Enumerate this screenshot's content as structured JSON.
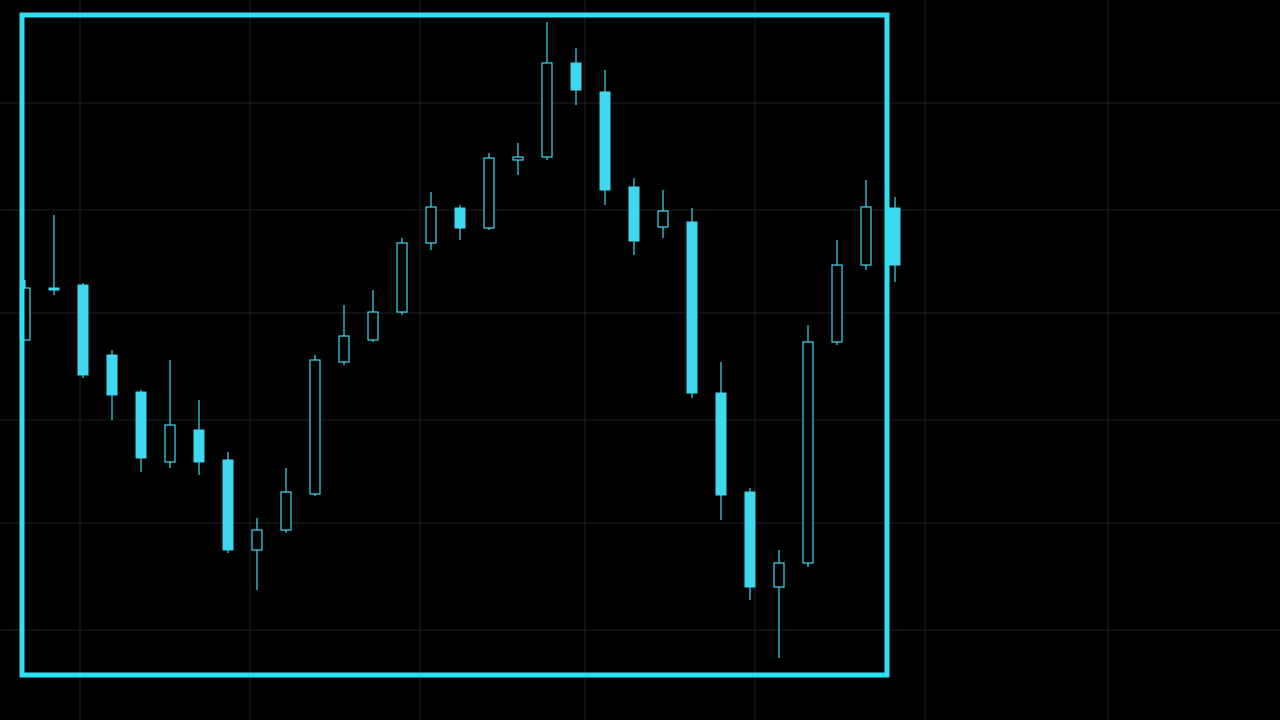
{
  "chart_data": {
    "type": "candlestick",
    "color": "#3fd8f0",
    "ylim": [
      0,
      720
    ],
    "open": [
      380,
      432,
      435,
      365,
      328,
      258,
      290,
      260,
      170,
      190,
      226,
      358,
      380,
      408,
      477,
      512,
      492,
      560,
      563,
      657,
      628,
      533,
      493,
      498,
      327,
      228,
      133,
      157,
      378,
      455,
      512
    ],
    "high": [
      440,
      505,
      437,
      370,
      330,
      360,
      320,
      268,
      202,
      252,
      365,
      415,
      430,
      482,
      528,
      515,
      567,
      577,
      698,
      672,
      650,
      542,
      530,
      512,
      358,
      232,
      170,
      395,
      480,
      540,
      523
    ],
    "low": [
      380,
      425,
      342,
      300,
      248,
      252,
      245,
      167,
      130,
      187,
      224,
      355,
      378,
      405,
      470,
      480,
      490,
      545,
      560,
      615,
      515,
      465,
      482,
      322,
      200,
      120,
      62,
      153,
      375,
      450,
      438
    ],
    "close": [
      432,
      430,
      345,
      325,
      262,
      295,
      258,
      170,
      190,
      228,
      360,
      384,
      408,
      477,
      513,
      492,
      562,
      563,
      657,
      630,
      530,
      479,
      509,
      327,
      225,
      133,
      157,
      378,
      455,
      513,
      455
    ]
  }
}
